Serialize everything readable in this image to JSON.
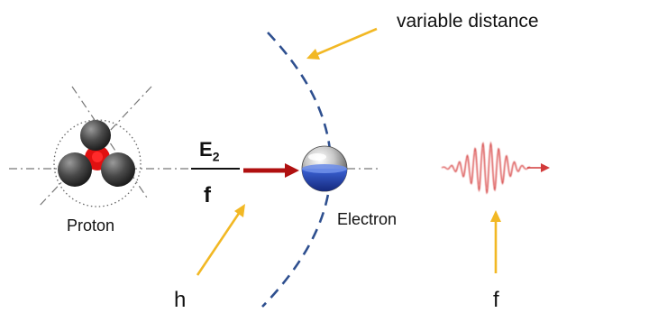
{
  "labels": {
    "variable_distance": "variable distance",
    "proton": "Proton",
    "electron": "Electron",
    "h": "h",
    "f_bottom": "f"
  },
  "fraction": {
    "numerator": "E",
    "numerator_subscript": "2",
    "denominator": "f"
  },
  "colors": {
    "arc": "#2e4f8f",
    "pointer_arrow": "#f2b824",
    "red_arrow": "#b01010",
    "wave": "#d23a3a",
    "electron_blue": "#1f3ea8",
    "proton_core": "#e01010"
  }
}
